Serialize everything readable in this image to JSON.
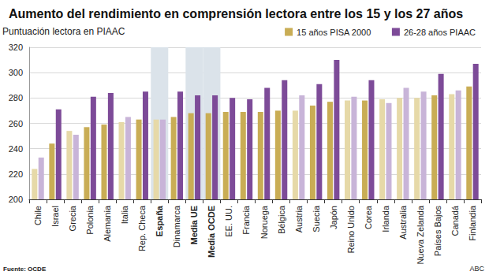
{
  "chart_data": {
    "type": "bar",
    "title": "Aumento del rendimiento en comprensión lectora entre los 15 y los 27 años",
    "y_label": "Puntuación lectora en PIAAC",
    "annotations": [
      "Fuente: OCDE",
      "ABC"
    ],
    "categories": [
      "Chile",
      "Israel",
      "Grecia",
      "Polonia",
      "Alemania",
      "Italia",
      "Rep. Checa",
      "España",
      "Dinamarca",
      "Media UE",
      "Media OCDE",
      "EE. UU.",
      "Francia",
      "Noruega",
      "Bélgica",
      "Austria",
      "Suecia",
      "Japón",
      "Reino Unido",
      "Corea",
      "Irlanda",
      "Australia",
      "Nueva Zelanda",
      "Países Bajos",
      "Canadá",
      "Finlandia"
    ],
    "series": [
      {
        "name": "15 años PISA 2000",
        "color": "#c9ad55",
        "values": [
          224,
          244,
          254,
          257,
          259,
          261,
          263,
          263,
          265,
          268,
          268,
          269,
          269,
          269,
          270,
          270,
          274,
          277,
          278,
          278,
          279,
          280,
          280,
          282,
          283,
          289
        ],
        "colors": [
          "#e6d9a8",
          "#c9ad55",
          "#e6d9a8",
          "#c9ad55",
          "#c9ad55",
          "#e6d9a8",
          "#c9ad55",
          "#e6d9a8",
          "#c9ad55",
          "#c9ad55",
          "#c9ad55",
          "#c9ad55",
          "#c9ad55",
          "#c9ad55",
          "#c9ad55",
          "#e6d9a8",
          "#c9ad55",
          "#c9ad55",
          "#e6d9a8",
          "#c9ad55",
          "#e6d9a8",
          "#e6d9a8",
          "#e6d9a8",
          "#c9ad55",
          "#e6d9a8",
          "#c9ad55"
        ]
      },
      {
        "name": "26-28 años PIAAC",
        "color": "#7d4b98",
        "values": [
          233,
          271,
          251,
          281,
          284,
          265,
          285,
          263,
          285,
          282,
          282,
          280,
          279,
          288,
          294,
          282,
          291,
          310,
          281,
          294,
          276,
          288,
          285,
          299,
          286,
          307
        ],
        "colors": [
          "#c8b4d8",
          "#7d4b98",
          "#c8b4d8",
          "#7d4b98",
          "#7d4b98",
          "#c8b4d8",
          "#7d4b98",
          "#c8b4d8",
          "#7d4b98",
          "#7d4b98",
          "#7d4b98",
          "#7d4b98",
          "#7d4b98",
          "#7d4b98",
          "#7d4b98",
          "#c8b4d8",
          "#7d4b98",
          "#7d4b98",
          "#c8b4d8",
          "#7d4b98",
          "#c8b4d8",
          "#c8b4d8",
          "#c8b4d8",
          "#7d4b98",
          "#c8b4d8",
          "#7d4b98"
        ]
      }
    ],
    "ylim": [
      200,
      320
    ],
    "yticks": [
      200,
      220,
      240,
      260,
      280,
      300,
      320
    ],
    "grid": true,
    "legend": "upper right"
  }
}
